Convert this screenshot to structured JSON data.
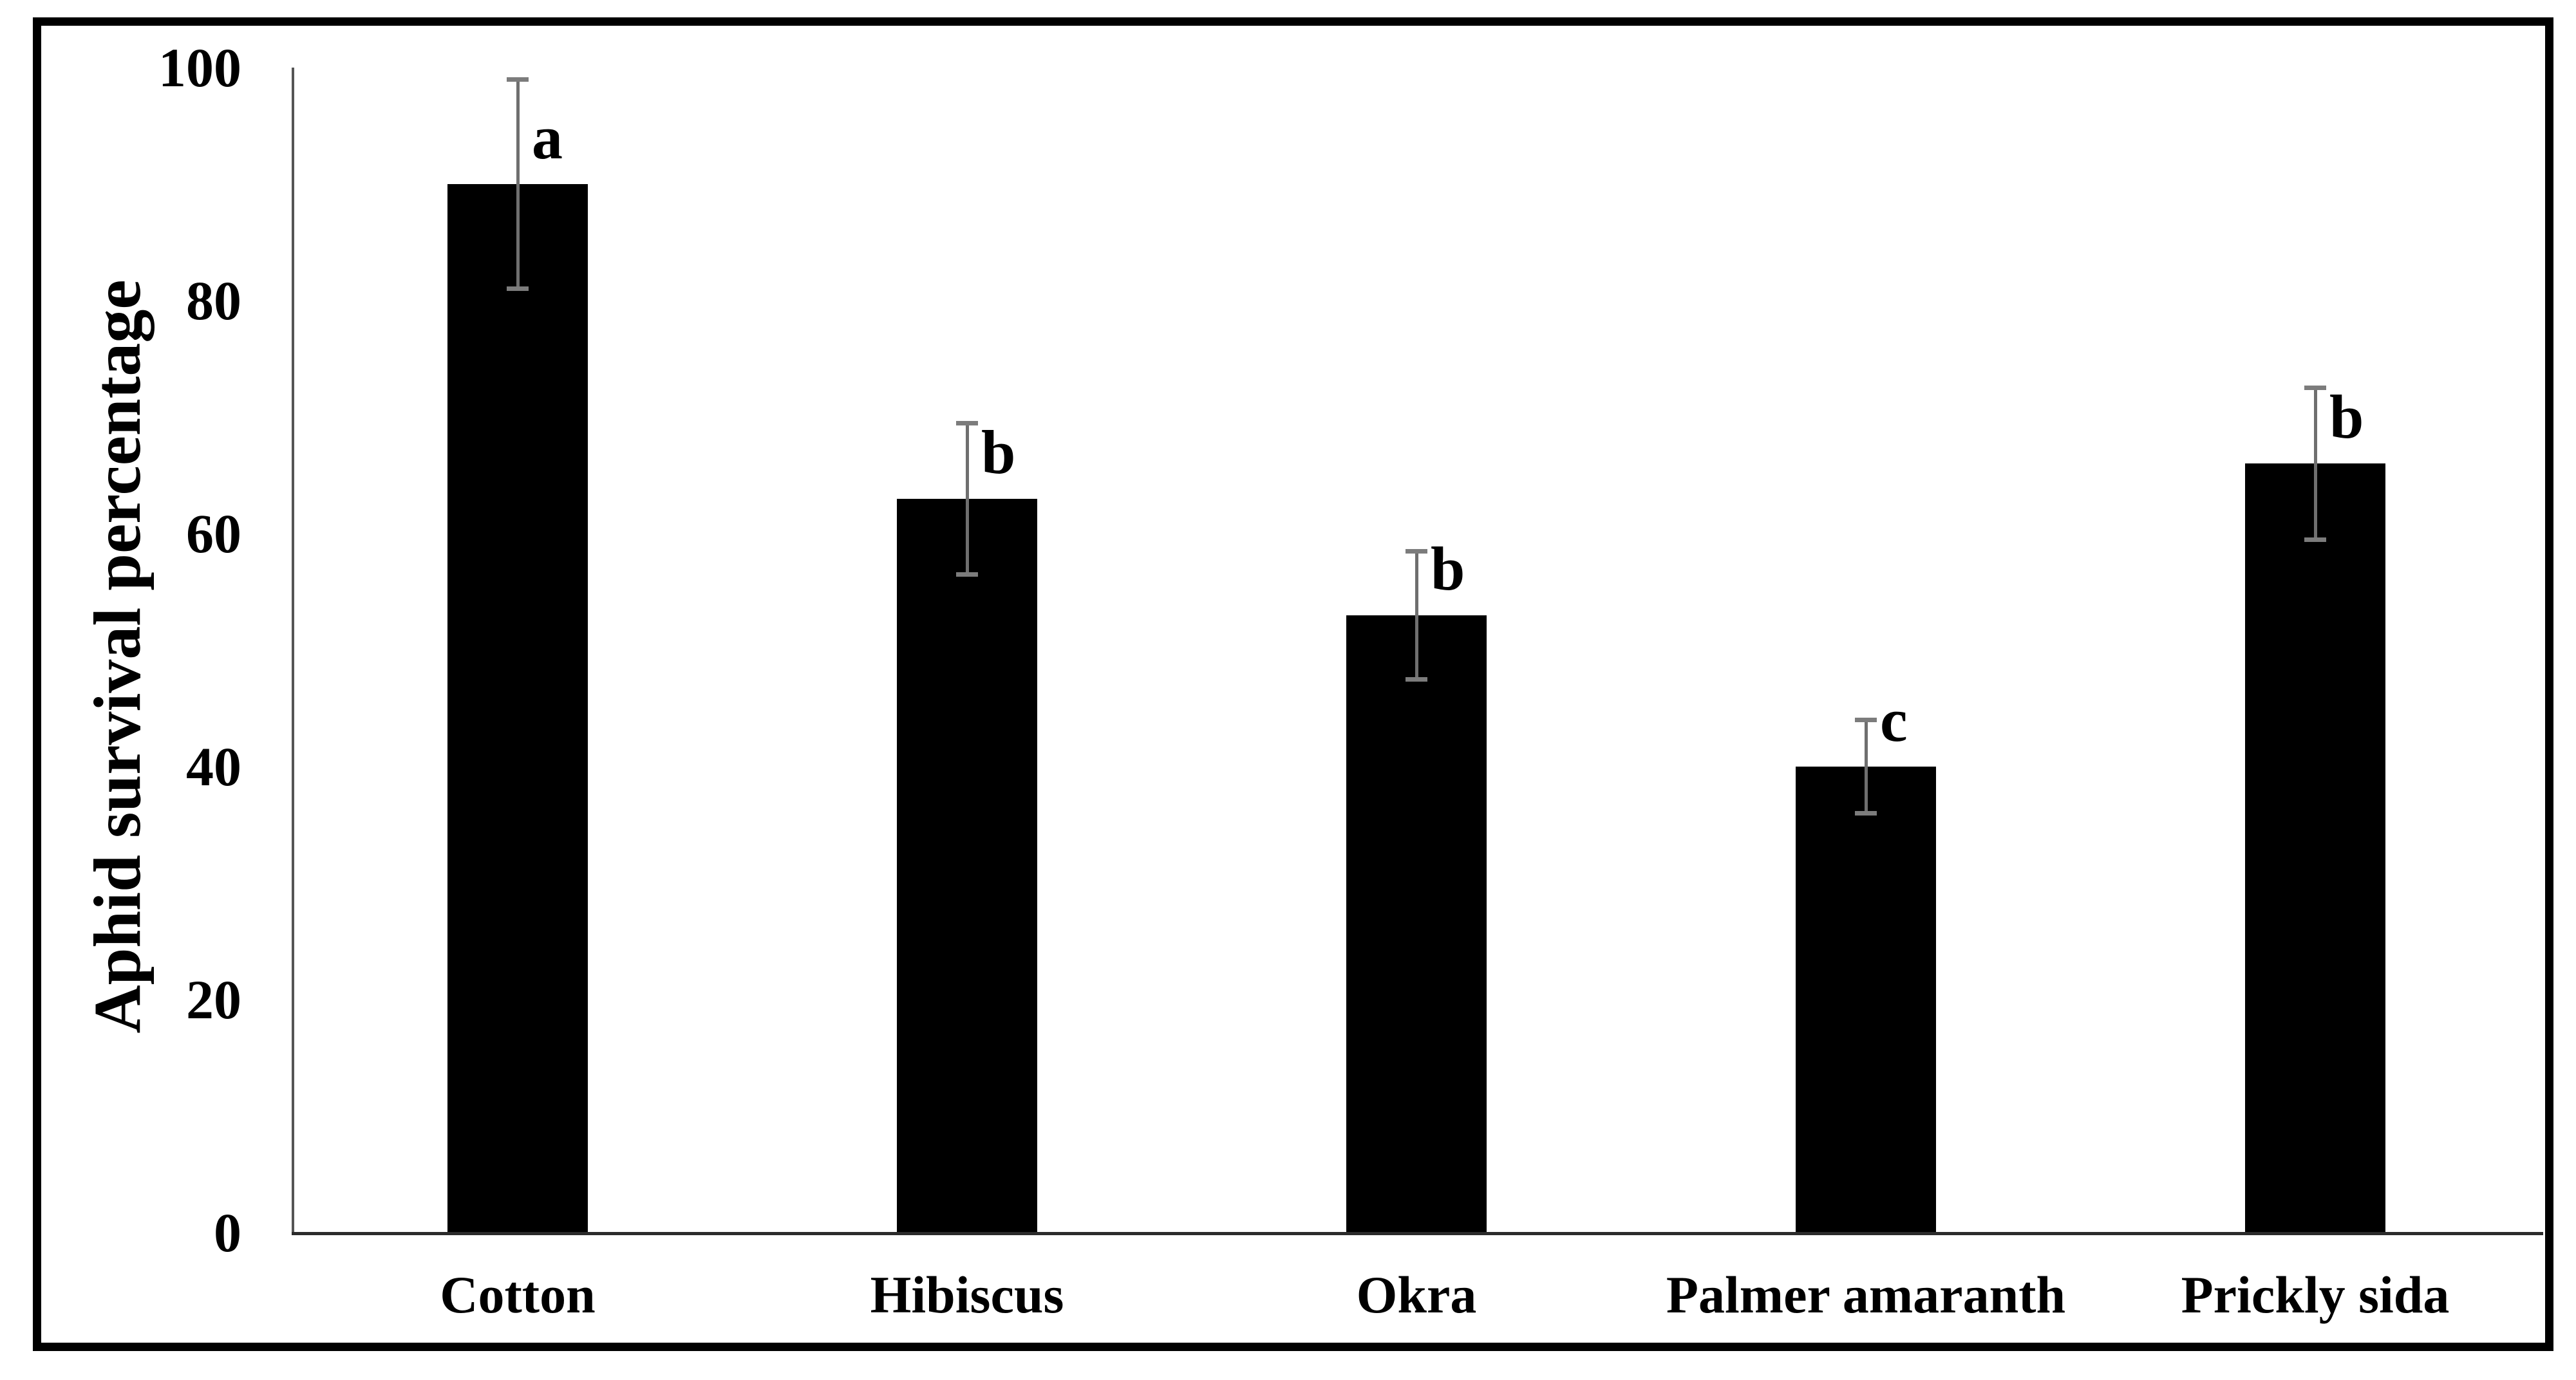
{
  "chart_data": {
    "type": "bar",
    "title": "",
    "ylabel": "Aphid survival percentage",
    "xlabel": "",
    "categories": [
      "Cotton",
      "Hibiscus",
      "Okra",
      "Palmer amaranth",
      "Prickly sida"
    ],
    "values": [
      90,
      63,
      53,
      40,
      66
    ],
    "error_bars": [
      9,
      6.5,
      5.5,
      4,
      6.5
    ],
    "sig_letters": [
      "a",
      "b",
      "b",
      "c",
      "b"
    ],
    "yticks": [
      0,
      20,
      40,
      60,
      80,
      100
    ],
    "ylim": [
      0,
      100
    ],
    "grid": false,
    "legend": "none",
    "bar_color": "#000000",
    "error_bar_color": "#6f6f6f",
    "error_cap_color": "#7c7c7c",
    "y_axis_color": "#555555",
    "x_axis_color": "#2b2b2b",
    "frame_color": "#000000"
  }
}
